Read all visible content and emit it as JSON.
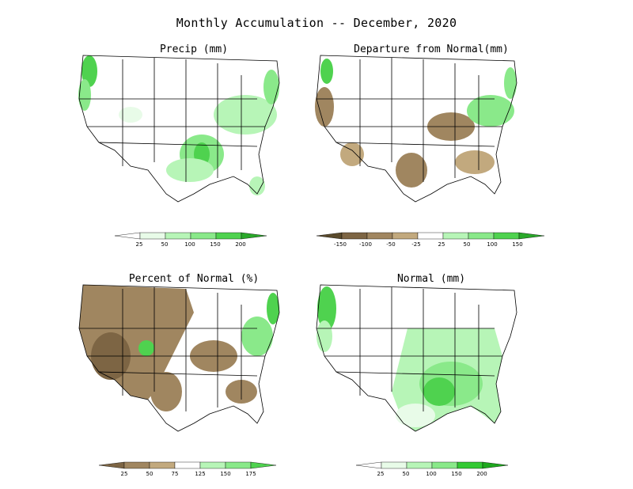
{
  "figure": {
    "title": "Monthly Accumulation -- December, 2020"
  },
  "panels": {
    "precip": {
      "title": "Precip (mm)"
    },
    "departure": {
      "title": "Departure from Normal(mm)"
    },
    "percent": {
      "title": "Percent of Normal (%)"
    },
    "normal": {
      "title": "Normal (mm)"
    }
  },
  "colorbars": {
    "precip": {
      "ticks": [
        "25",
        "50",
        "100",
        "150",
        "200"
      ],
      "colors": [
        "#ffffff",
        "#e8fbe8",
        "#b7f5b7",
        "#8ae98a",
        "#4fd24f",
        "#2aa82a"
      ]
    },
    "departure": {
      "ticks": [
        "-150",
        "-100",
        "-50",
        "-25",
        "25",
        "50",
        "100",
        "150"
      ],
      "colors": [
        "#5a4a2c",
        "#7d6544",
        "#a08660",
        "#c2a97e",
        "#ffffff",
        "#b7f5b7",
        "#8ae98a",
        "#4fd24f",
        "#2aa82a"
      ]
    },
    "percent": {
      "ticks": [
        "25",
        "50",
        "75",
        "125",
        "150",
        "175"
      ],
      "colors": [
        "#7d6544",
        "#a08660",
        "#c2a97e",
        "#ffffff",
        "#b7f5b7",
        "#8ae98a",
        "#4fd24f"
      ]
    },
    "normal": {
      "ticks": [
        "25",
        "50",
        "100",
        "150",
        "200"
      ],
      "colors": [
        "#ffffff",
        "#e8fbe8",
        "#b7f5b7",
        "#8ae98a",
        "#34c934",
        "#1fa81f"
      ]
    }
  },
  "colors": {
    "dry": "#a08660",
    "wet": "#5ed15e",
    "light_green": "#c8f5c8"
  }
}
